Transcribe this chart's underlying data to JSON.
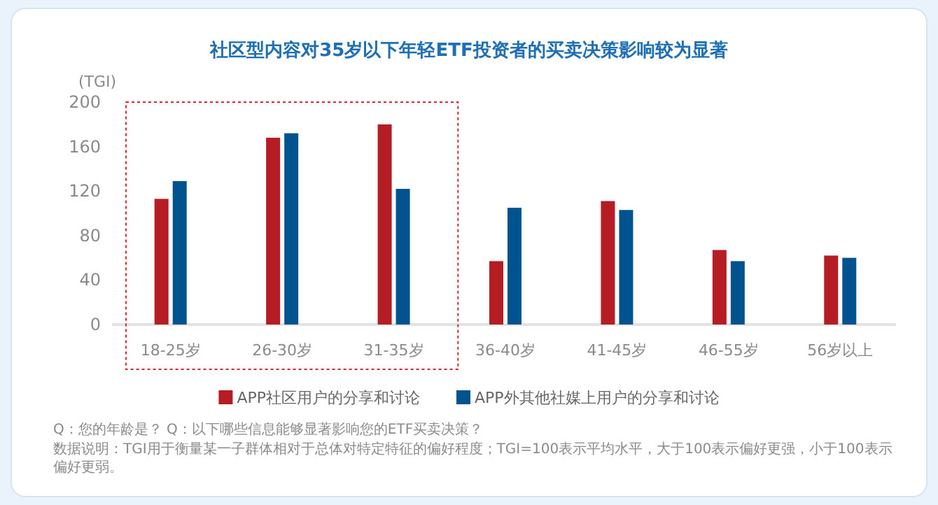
{
  "chart_data": {
    "type": "bar",
    "title": "社区型内容对35岁以下年轻ETF投资者的买卖决策影响较为显著",
    "ylabel": "(TGI)",
    "categories": [
      "18-25岁",
      "26-30岁",
      "31-35岁",
      "36-40岁",
      "41-45岁",
      "46-55岁",
      "56岁以上"
    ],
    "series": [
      {
        "name": "APP社区用户的分享和讨论",
        "color": "#b51c23",
        "values": [
          113,
          168,
          180,
          57,
          111,
          67,
          62
        ]
      },
      {
        "name": "APP外其他社媒上用户的分享和讨论",
        "color": "#00538f",
        "values": [
          129,
          172,
          122,
          105,
          103,
          57,
          60
        ]
      }
    ],
    "ylim": [
      0,
      200
    ],
    "yticks": [
      0,
      40,
      80,
      120,
      160,
      200
    ],
    "grid": false,
    "legend": "bottom",
    "annotations": [
      "Q：您的年龄是？ Q：以下哪些信息能够显著影响您的ETF买卖决策？",
      "数据说明：TGI用于衡量某一子群体相对于总体对特定特征的偏好程度；TGI=100表示平均水平，大于100表示偏好更强，小于100表示偏好更弱。"
    ]
  }
}
